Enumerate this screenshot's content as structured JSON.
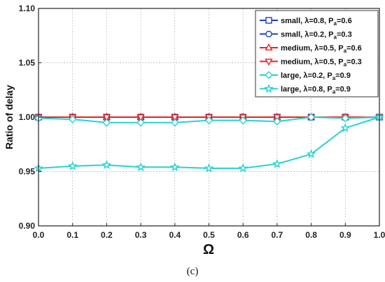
{
  "chart_data": {
    "type": "line",
    "xlabel": "Ω",
    "ylabel": "Ratio of delay",
    "xlim": [
      0.0,
      1.0
    ],
    "ylim": [
      0.9,
      1.1
    ],
    "x": [
      0.0,
      0.1,
      0.2,
      0.3,
      0.4,
      0.5,
      0.6,
      0.7,
      0.8,
      0.9,
      1.0
    ],
    "xticks": [
      "0.0",
      "0.1",
      "0.2",
      "0.3",
      "0.4",
      "0.5",
      "0.6",
      "0.7",
      "0.8",
      "0.9",
      "1.0"
    ],
    "yticks": [
      "0.90",
      "0.95",
      "1.00",
      "1.05",
      "1.10"
    ],
    "ytick_values": [
      0.9,
      0.95,
      1.0,
      1.05,
      1.1
    ],
    "grid": true,
    "legend_position": "top-right",
    "caption": "(c)",
    "series": [
      {
        "name": "small, λ=0.8, P",
        "sub": "a",
        "tail": "=0.6",
        "color": "#1f3fbf",
        "marker": "square",
        "values": [
          1.0,
          1.0,
          1.0,
          1.0,
          1.0,
          1.0,
          1.0,
          1.0,
          1.0,
          1.0,
          1.0
        ]
      },
      {
        "name": "small, λ=0.2, P",
        "sub": "a",
        "tail": "=0.3",
        "color": "#1f3fbf",
        "marker": "circle",
        "values": [
          1.0,
          1.0,
          1.0,
          1.0,
          1.0,
          1.0,
          1.0,
          1.0,
          1.0,
          1.0,
          1.0
        ]
      },
      {
        "name": "medium, λ=0.5, P",
        "sub": "a",
        "tail": "=0.6",
        "color": "#e8231f",
        "marker": "triangle-up",
        "values": [
          1.0,
          1.0,
          1.0,
          1.0,
          1.0,
          1.0,
          1.0,
          1.0,
          1.0,
          1.0,
          1.0
        ]
      },
      {
        "name": "medium, λ=0.5, P",
        "sub": "a",
        "tail": "=0.3",
        "color": "#e8231f",
        "marker": "triangle-down",
        "values": [
          1.0,
          1.0,
          1.0,
          1.0,
          1.0,
          1.0,
          1.0,
          1.0,
          1.0,
          1.0,
          1.0
        ]
      },
      {
        "name": "large, λ=0.2, P",
        "sub": "a",
        "tail": "=0.9",
        "color": "#25d3d3",
        "marker": "diamond",
        "values": [
          0.999,
          0.998,
          0.995,
          0.995,
          0.995,
          0.997,
          0.997,
          0.996,
          1.0,
          0.999,
          1.0
        ]
      },
      {
        "name": "large, λ=0.8, P",
        "sub": "a",
        "tail": "=0.9",
        "color": "#25d3d3",
        "marker": "star",
        "values": [
          0.953,
          0.955,
          0.956,
          0.954,
          0.954,
          0.953,
          0.953,
          0.957,
          0.966,
          0.99,
          1.0
        ]
      }
    ]
  }
}
